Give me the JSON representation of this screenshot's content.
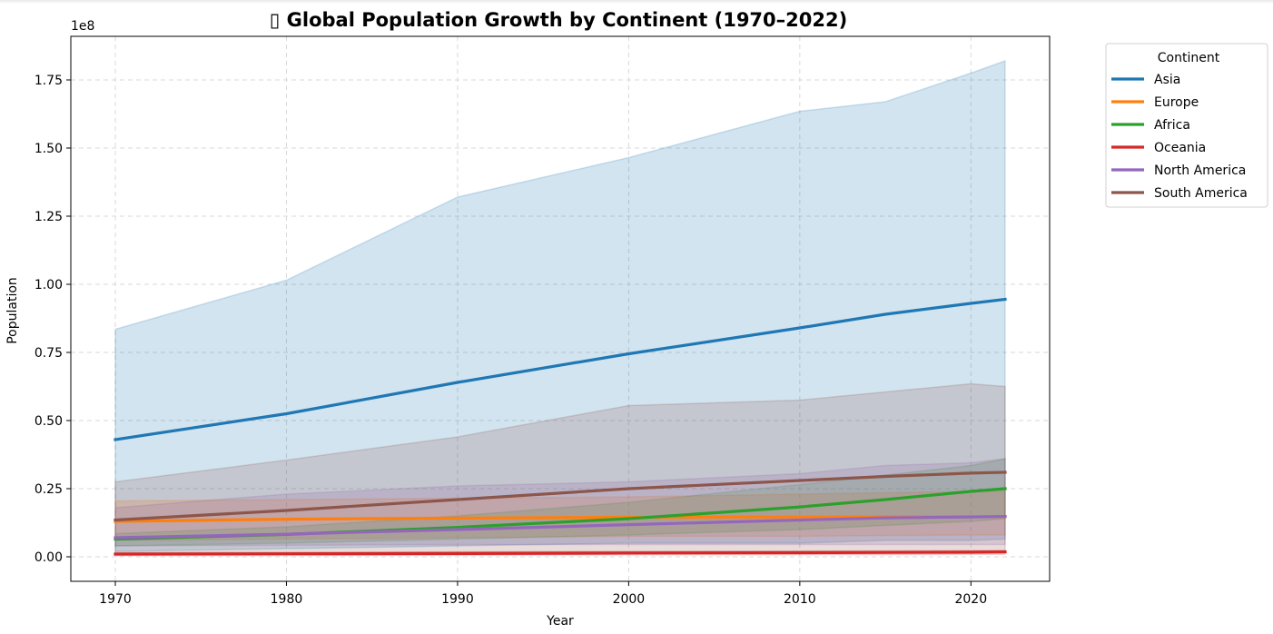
{
  "chart_data": {
    "type": "line",
    "title": "▯ Global Population Growth by Continent (1970–2022)",
    "xlabel": "Year",
    "ylabel": "Population",
    "y_multiplier_label": "1e8",
    "xlim": [
      1967.4,
      2024.6
    ],
    "ylim": [
      -0.09,
      1.91
    ],
    "x_ticks": [
      1970,
      1980,
      1990,
      2000,
      2010,
      2020
    ],
    "y_ticks": [
      0.0,
      0.25,
      0.5,
      0.75,
      1.0,
      1.25,
      1.5,
      1.75
    ],
    "y_tick_labels": [
      "0.00",
      "0.25",
      "0.50",
      "0.75",
      "1.00",
      "1.25",
      "1.50",
      "1.75"
    ],
    "grid": true,
    "legend": {
      "title": "Continent",
      "placement": "outside-top-right"
    },
    "x": [
      1970,
      1980,
      1990,
      2000,
      2010,
      2015,
      2020,
      2022
    ],
    "series": [
      {
        "name": "Asia",
        "color": "#1f77b4",
        "values": [
          0.43,
          0.525,
          0.64,
          0.745,
          0.84,
          0.89,
          0.93,
          0.945
        ],
        "band_upper": [
          0.835,
          1.015,
          1.32,
          1.465,
          1.635,
          1.67,
          1.775,
          1.82
        ],
        "band_lower": [
          0.02,
          0.03,
          0.04,
          0.05,
          0.05,
          0.06,
          0.06,
          0.065
        ]
      },
      {
        "name": "Europe",
        "color": "#ff7f0e",
        "values": [
          0.13,
          0.138,
          0.142,
          0.145,
          0.146,
          0.147,
          0.148,
          0.148
        ],
        "band_upper": [
          0.205,
          0.21,
          0.215,
          0.22,
          0.23,
          0.235,
          0.24,
          0.24
        ],
        "band_lower": [
          0.06,
          0.065,
          0.07,
          0.075,
          0.075,
          0.078,
          0.08,
          0.08
        ]
      },
      {
        "name": "Africa",
        "color": "#2ca02c",
        "values": [
          0.065,
          0.082,
          0.108,
          0.14,
          0.183,
          0.21,
          0.24,
          0.25
        ],
        "band_upper": [
          0.085,
          0.11,
          0.15,
          0.2,
          0.265,
          0.3,
          0.335,
          0.36
        ],
        "band_lower": [
          0.04,
          0.05,
          0.065,
          0.08,
          0.1,
          0.115,
          0.13,
          0.14
        ]
      },
      {
        "name": "Oceania",
        "color": "#d62728",
        "values": [
          0.01,
          0.011,
          0.012,
          0.014,
          0.015,
          0.016,
          0.017,
          0.018
        ],
        "band_upper": [
          0.015,
          0.016,
          0.018,
          0.02,
          0.021,
          0.022,
          0.023,
          0.024
        ],
        "band_lower": [
          0.004,
          0.005,
          0.006,
          0.007,
          0.008,
          0.008,
          0.009,
          0.009
        ]
      },
      {
        "name": "North America",
        "color": "#9467bd",
        "values": [
          0.07,
          0.083,
          0.1,
          0.118,
          0.135,
          0.143,
          0.146,
          0.148
        ],
        "band_upper": [
          0.18,
          0.23,
          0.26,
          0.275,
          0.305,
          0.335,
          0.345,
          0.36
        ],
        "band_lower": [
          0.04,
          0.042,
          0.045,
          0.045,
          0.045,
          0.045,
          0.045,
          0.045
        ]
      },
      {
        "name": "South America",
        "color": "#8c564b",
        "values": [
          0.135,
          0.17,
          0.21,
          0.25,
          0.28,
          0.295,
          0.307,
          0.31
        ],
        "band_upper": [
          0.275,
          0.355,
          0.44,
          0.555,
          0.575,
          0.605,
          0.635,
          0.625
        ],
        "band_lower": [
          0.015,
          0.015,
          0.017,
          0.018,
          0.02,
          0.02,
          0.02,
          0.02
        ]
      }
    ]
  }
}
